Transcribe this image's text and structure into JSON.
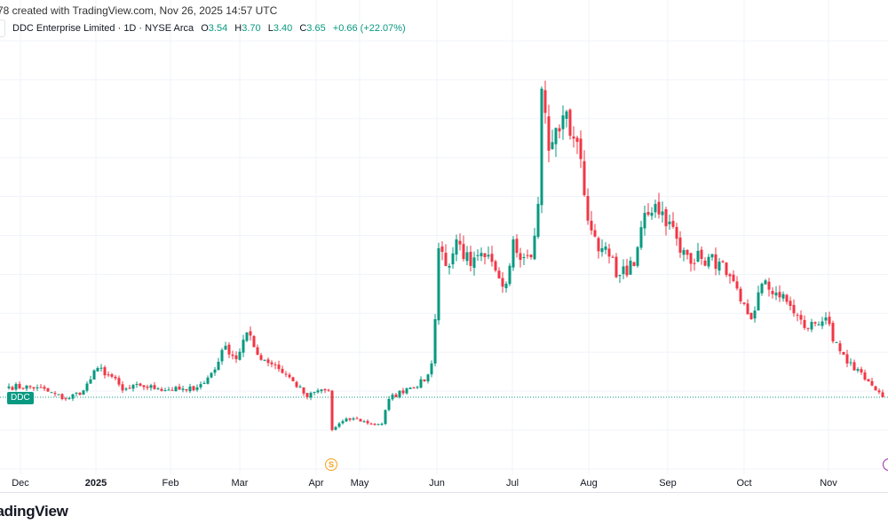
{
  "header": {
    "created_text": "78 created with TradingView.com, Nov 26, 2025 14:57 UTC",
    "symbol_desc": "DDC Enterprise Limited · 1D · NYSE Arca",
    "open_label": "O",
    "open": "3.54",
    "high_label": "H",
    "high": "3.70",
    "low_label": "L",
    "low": "3.40",
    "close_label": "C",
    "close": "3.65",
    "change": "+0.66 (+22.07%)"
  },
  "price_tag": "DDC",
  "events": {
    "dividend_icon": "dollar-circle-icon",
    "dividend_label": "S",
    "earnings_icon": "earnings-circle-icon"
  },
  "footer": {
    "logo": "TradingView"
  },
  "colors": {
    "up": "#089981",
    "down": "#f23645",
    "grid": "#f0f3fa",
    "dividend": "#f7a21b",
    "earnings": "#9c27b0"
  },
  "chart_data": {
    "type": "candlestick",
    "title": "DDC Enterprise Limited · 1D · NYSE Arca",
    "x_tick_labels": [
      "Dec",
      "2025",
      "Feb",
      "Mar",
      "Apr",
      "May",
      "Jun",
      "Jul",
      "Aug",
      "Sep",
      "Oct",
      "Nov"
    ],
    "last_price": 3.65,
    "grid": true,
    "close_keypoints": [
      [
        0,
        4.2
      ],
      [
        8,
        4.15
      ],
      [
        16,
        3.56
      ],
      [
        21,
        4.0
      ],
      [
        25,
        5.15
      ],
      [
        29,
        4.7
      ],
      [
        32,
        4.0
      ],
      [
        37,
        4.24
      ],
      [
        42,
        4.1
      ],
      [
        50,
        4.0
      ],
      [
        55,
        4.38
      ],
      [
        59,
        5.47
      ],
      [
        61,
        6.29
      ],
      [
        64,
        5.6
      ],
      [
        67,
        6.97
      ],
      [
        70,
        5.83
      ],
      [
        75,
        5.29
      ],
      [
        80,
        4.47
      ],
      [
        84,
        3.65
      ],
      [
        87,
        4.0
      ],
      [
        90,
        4.0
      ],
      [
        91,
        1.97
      ],
      [
        94,
        2.42
      ],
      [
        97,
        2.56
      ],
      [
        102,
        2.29
      ],
      [
        105,
        2.29
      ],
      [
        107,
        3.56
      ],
      [
        112,
        4.1
      ],
      [
        117,
        4.47
      ],
      [
        119,
        5.38
      ],
      [
        120,
        7.65
      ],
      [
        121,
        11.29
      ],
      [
        124,
        10.38
      ],
      [
        126,
        11.74
      ],
      [
        130,
        10.38
      ],
      [
        134,
        10.83
      ],
      [
        137,
        10.15
      ],
      [
        140,
        9.47
      ],
      [
        142,
        11.74
      ],
      [
        145,
        10.83
      ],
      [
        147,
        10.83
      ],
      [
        149,
        13.56
      ],
      [
        150,
        19.47
      ],
      [
        152,
        16.29
      ],
      [
        156,
        18.1
      ],
      [
        160,
        16.74
      ],
      [
        162,
        14.01
      ],
      [
        164,
        12.2
      ],
      [
        167,
        11.29
      ],
      [
        172,
        9.92
      ],
      [
        176,
        10.38
      ],
      [
        179,
        13.1
      ],
      [
        182,
        13.56
      ],
      [
        186,
        12.65
      ],
      [
        189,
        11.06
      ],
      [
        195,
        10.74
      ],
      [
        200,
        10.6
      ],
      [
        202,
        9.92
      ],
      [
        206,
        8.56
      ],
      [
        209,
        7.65
      ],
      [
        212,
        9.47
      ],
      [
        216,
        9.01
      ],
      [
        220,
        8.33
      ],
      [
        224,
        7.2
      ],
      [
        230,
        7.74
      ],
      [
        232,
        6.51
      ],
      [
        236,
        5.38
      ],
      [
        240,
        4.92
      ],
      [
        244,
        4.0
      ],
      [
        246,
        3.65
      ]
    ]
  }
}
